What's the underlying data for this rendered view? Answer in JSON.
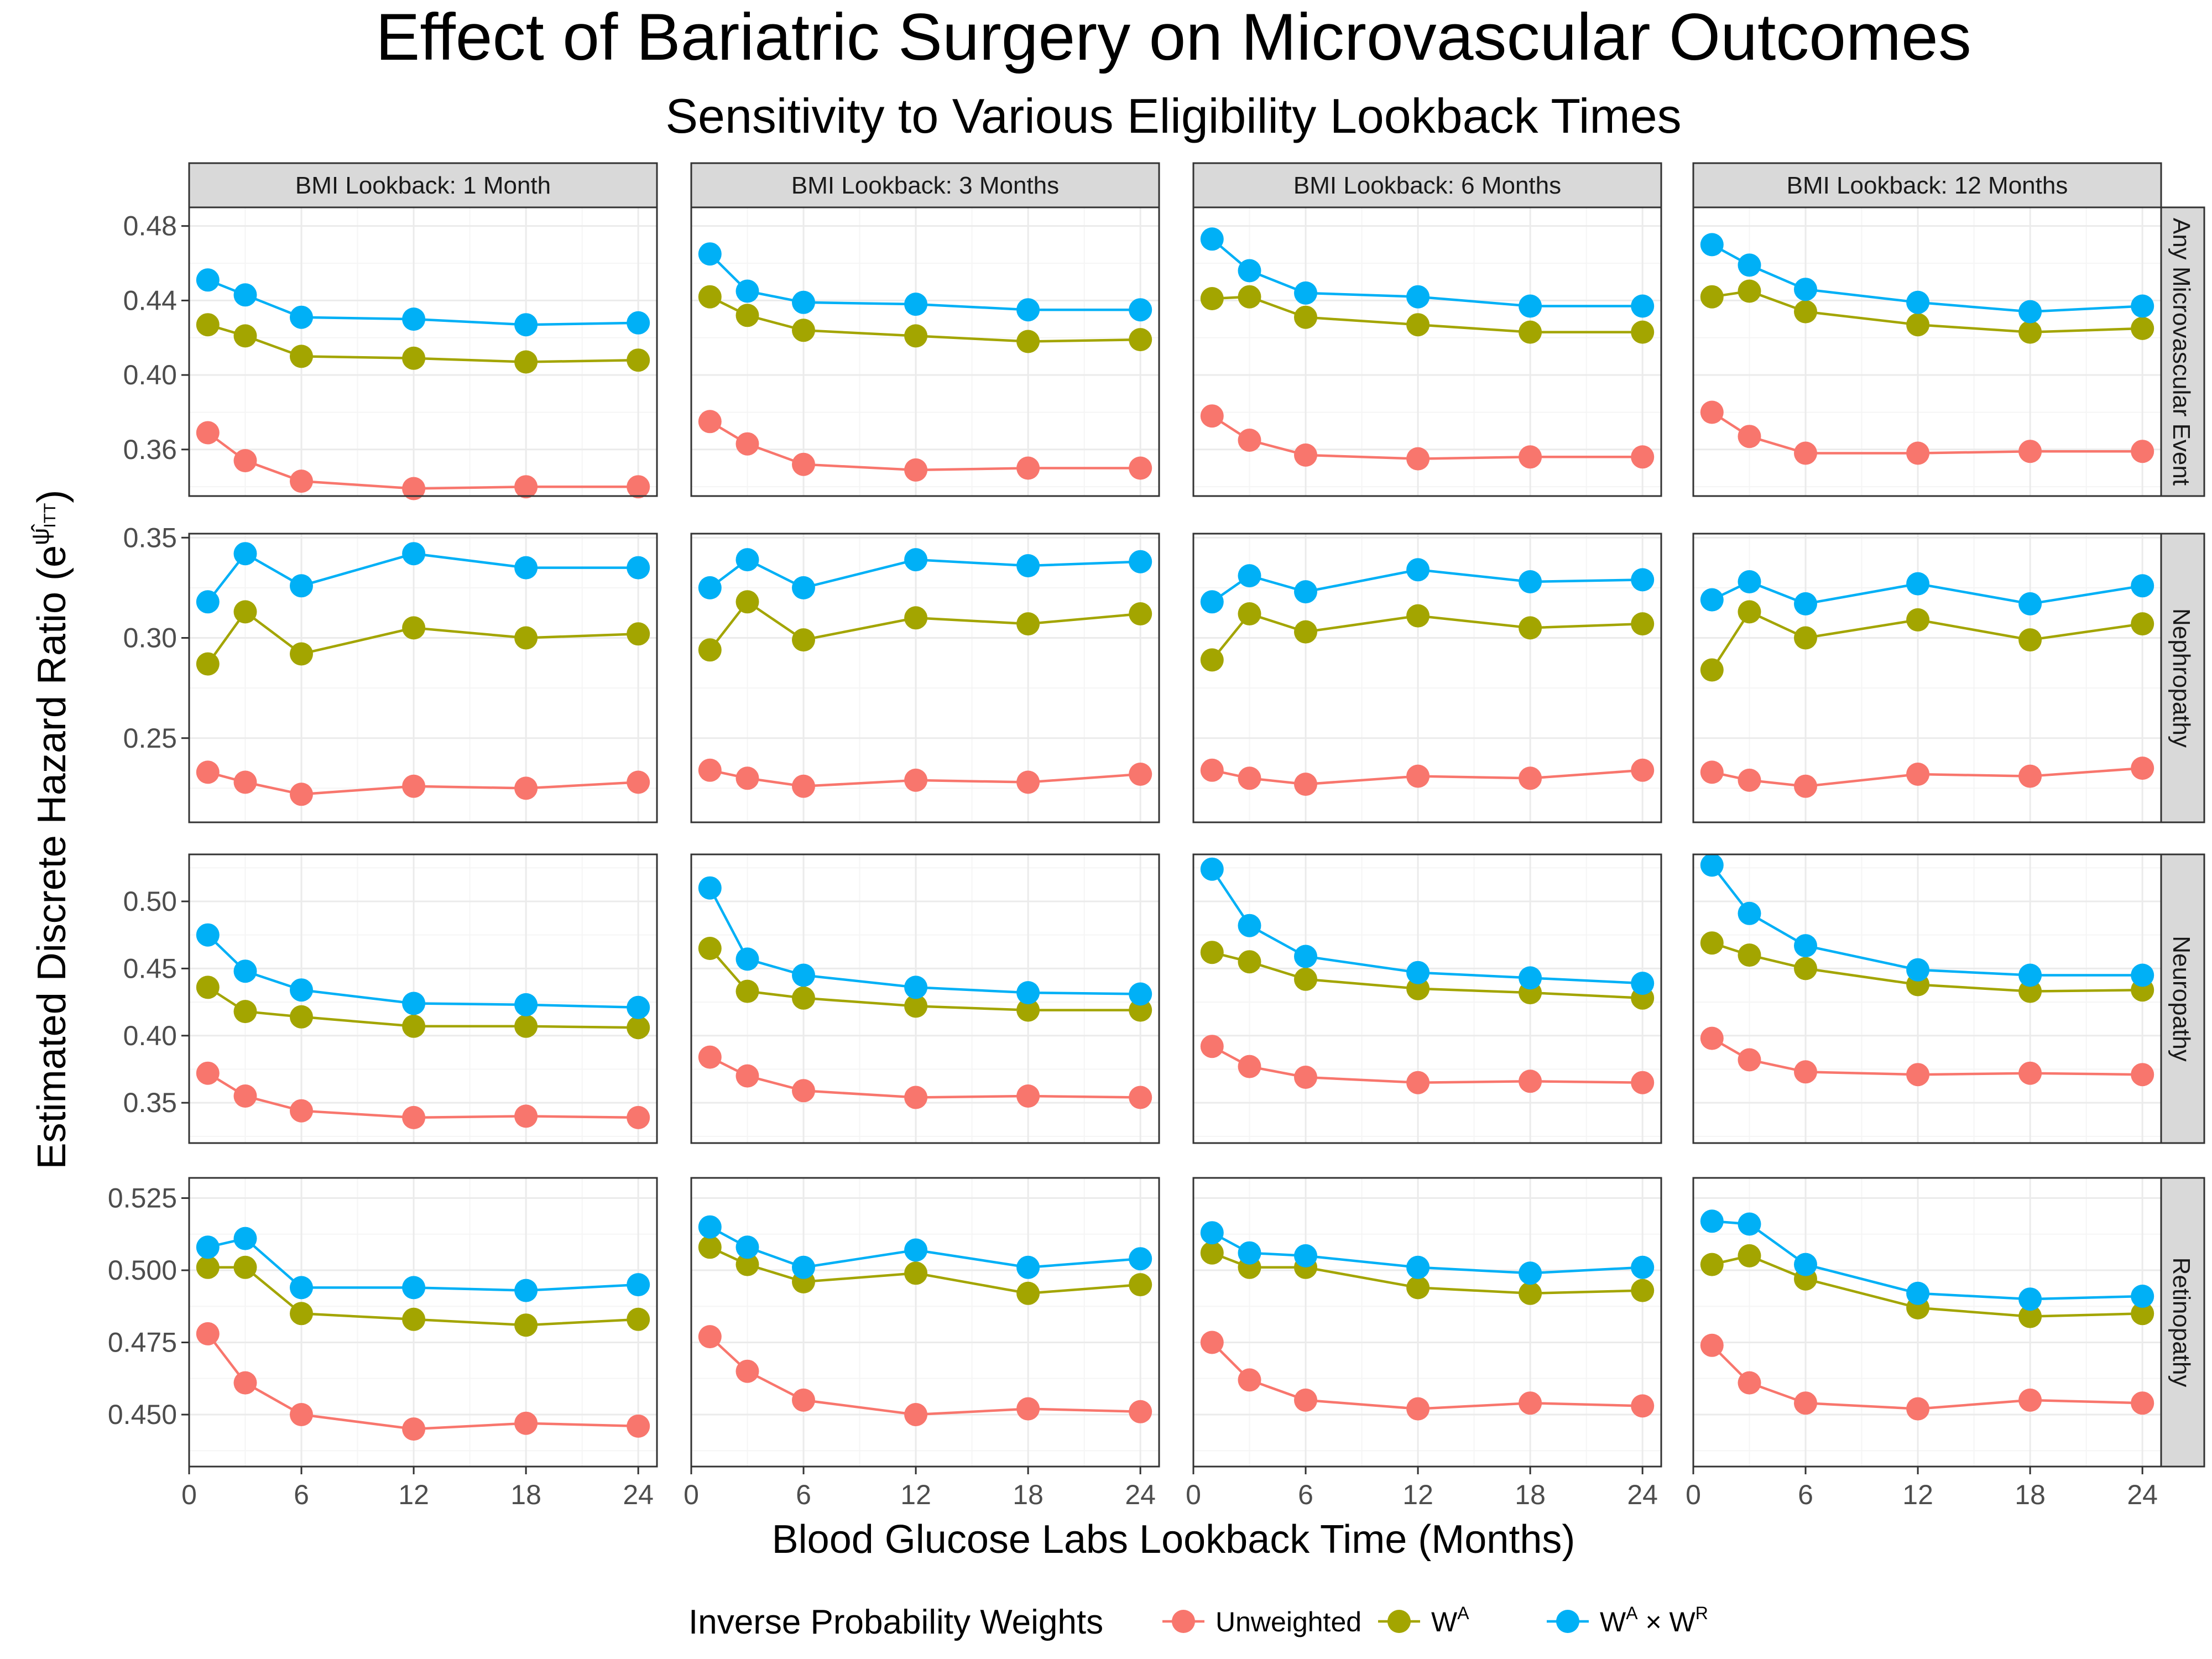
{
  "chart_data": {
    "type": "line",
    "title": "Effect of Bariatric Surgery on Microvascular Outcomes",
    "subtitle": "Sensitivity to Various Eligibility Lookback Times",
    "xlabel": "Blood Glucose Labs Lookback Time (Months)",
    "ylabel_text": "Estimated Discrete Hazard Ratio (e",
    "ylabel_sup": "ψ̂",
    "ylabel_sub": "ITT",
    "ylabel_close": ")",
    "x": [
      1,
      3,
      6,
      12,
      18,
      24
    ],
    "xlim": [
      0,
      25
    ],
    "xticks": [
      0,
      6,
      12,
      18,
      24
    ],
    "grid": true,
    "legend": {
      "title": "Inverse Probability Weights",
      "position": "bottom",
      "entries": [
        {
          "key": "unweighted",
          "label": "Unweighted"
        },
        {
          "key": "wa",
          "base": "W",
          "sup": "A"
        },
        {
          "key": "wawr",
          "base": "W",
          "sup": "A",
          "op": " × ",
          "base2": "W",
          "sup2": "R"
        }
      ]
    },
    "colors": {
      "unweighted": "#F8766D",
      "wa": "#A3A500",
      "wawr": "#00B0F6"
    },
    "columns": [
      "BMI Lookback: 1 Month",
      "BMI Lookback: 3 Months",
      "BMI Lookback: 6 Months",
      "BMI Lookback: 12 Months"
    ],
    "rows": [
      {
        "label": "Any Microvascular Event",
        "ylim": [
          0.335,
          0.49
        ],
        "yticks": [
          0.36,
          0.4,
          0.44,
          0.48
        ],
        "ytick_labels": [
          "0.36",
          "0.40",
          "0.44",
          "0.48"
        ],
        "panels": [
          {
            "unweighted": [
              0.369,
              0.354,
              0.343,
              0.339,
              0.34,
              0.34
            ],
            "wa": [
              0.427,
              0.421,
              0.41,
              0.409,
              0.407,
              0.408
            ],
            "wawr": [
              0.451,
              0.443,
              0.431,
              0.43,
              0.427,
              0.428
            ]
          },
          {
            "unweighted": [
              0.375,
              0.363,
              0.352,
              0.349,
              0.35,
              0.35
            ],
            "wa": [
              0.442,
              0.432,
              0.424,
              0.421,
              0.418,
              0.419
            ],
            "wawr": [
              0.465,
              0.445,
              0.439,
              0.438,
              0.435,
              0.435
            ]
          },
          {
            "unweighted": [
              0.378,
              0.365,
              0.357,
              0.355,
              0.356,
              0.356
            ],
            "wa": [
              0.441,
              0.442,
              0.431,
              0.427,
              0.423,
              0.423
            ],
            "wawr": [
              0.473,
              0.456,
              0.444,
              0.442,
              0.437,
              0.437
            ]
          },
          {
            "unweighted": [
              0.38,
              0.367,
              0.358,
              0.358,
              0.359,
              0.359
            ],
            "wa": [
              0.442,
              0.445,
              0.434,
              0.427,
              0.423,
              0.425
            ],
            "wawr": [
              0.47,
              0.459,
              0.446,
              0.439,
              0.434,
              0.437
            ]
          }
        ]
      },
      {
        "label": "Nephropathy",
        "ylim": [
          0.208,
          0.352
        ],
        "yticks": [
          0.25,
          0.3,
          0.35
        ],
        "ytick_labels": [
          "0.25",
          "0.30",
          "0.35"
        ],
        "panels": [
          {
            "unweighted": [
              0.233,
              0.228,
              0.222,
              0.226,
              0.225,
              0.228
            ],
            "wa": [
              0.287,
              0.313,
              0.292,
              0.305,
              0.3,
              0.302
            ],
            "wawr": [
              0.318,
              0.342,
              0.326,
              0.342,
              0.335,
              0.335
            ]
          },
          {
            "unweighted": [
              0.234,
              0.23,
              0.226,
              0.229,
              0.228,
              0.232
            ],
            "wa": [
              0.294,
              0.318,
              0.299,
              0.31,
              0.307,
              0.312
            ],
            "wawr": [
              0.325,
              0.339,
              0.325,
              0.339,
              0.336,
              0.338
            ]
          },
          {
            "unweighted": [
              0.234,
              0.23,
              0.227,
              0.231,
              0.23,
              0.234
            ],
            "wa": [
              0.289,
              0.312,
              0.303,
              0.311,
              0.305,
              0.307
            ],
            "wawr": [
              0.318,
              0.331,
              0.323,
              0.334,
              0.328,
              0.329
            ]
          },
          {
            "unweighted": [
              0.233,
              0.229,
              0.226,
              0.232,
              0.231,
              0.235
            ],
            "wa": [
              0.284,
              0.313,
              0.3,
              0.309,
              0.299,
              0.307
            ],
            "wawr": [
              0.319,
              0.328,
              0.317,
              0.327,
              0.317,
              0.326
            ]
          }
        ]
      },
      {
        "label": "Neuropathy",
        "ylim": [
          0.32,
          0.535
        ],
        "yticks": [
          0.35,
          0.4,
          0.45,
          0.5
        ],
        "ytick_labels": [
          "0.35",
          "0.40",
          "0.45",
          "0.50"
        ],
        "panels": [
          {
            "unweighted": [
              0.372,
              0.355,
              0.344,
              0.339,
              0.34,
              0.339
            ],
            "wa": [
              0.436,
              0.418,
              0.414,
              0.407,
              0.407,
              0.406
            ],
            "wawr": [
              0.475,
              0.448,
              0.434,
              0.424,
              0.423,
              0.421
            ]
          },
          {
            "unweighted": [
              0.384,
              0.37,
              0.359,
              0.354,
              0.355,
              0.354
            ],
            "wa": [
              0.465,
              0.433,
              0.428,
              0.422,
              0.419,
              0.419
            ],
            "wawr": [
              0.51,
              0.457,
              0.445,
              0.436,
              0.432,
              0.431
            ]
          },
          {
            "unweighted": [
              0.392,
              0.377,
              0.369,
              0.365,
              0.366,
              0.365
            ],
            "wa": [
              0.462,
              0.455,
              0.442,
              0.435,
              0.432,
              0.428
            ],
            "wawr": [
              0.524,
              0.482,
              0.459,
              0.447,
              0.443,
              0.439
            ]
          },
          {
            "unweighted": [
              0.398,
              0.382,
              0.373,
              0.371,
              0.372,
              0.371
            ],
            "wa": [
              0.469,
              0.46,
              0.45,
              0.438,
              0.433,
              0.434
            ],
            "wawr": [
              0.527,
              0.491,
              0.467,
              0.449,
              0.445,
              0.445
            ]
          }
        ]
      },
      {
        "label": "Retinopathy",
        "ylim": [
          0.432,
          0.532
        ],
        "yticks": [
          0.45,
          0.475,
          0.5,
          0.525
        ],
        "ytick_labels": [
          "0.450",
          "0.475",
          "0.500",
          "0.525"
        ],
        "panels": [
          {
            "unweighted": [
              0.478,
              0.461,
              0.45,
              0.445,
              0.447,
              0.446
            ],
            "wa": [
              0.501,
              0.501,
              0.485,
              0.483,
              0.481,
              0.483
            ],
            "wawr": [
              0.508,
              0.511,
              0.494,
              0.494,
              0.493,
              0.495
            ]
          },
          {
            "unweighted": [
              0.477,
              0.465,
              0.455,
              0.45,
              0.452,
              0.451
            ],
            "wa": [
              0.508,
              0.502,
              0.496,
              0.499,
              0.492,
              0.495
            ],
            "wawr": [
              0.515,
              0.508,
              0.501,
              0.507,
              0.501,
              0.504
            ]
          },
          {
            "unweighted": [
              0.475,
              0.462,
              0.455,
              0.452,
              0.454,
              0.453
            ],
            "wa": [
              0.506,
              0.501,
              0.501,
              0.494,
              0.492,
              0.493
            ],
            "wawr": [
              0.513,
              0.506,
              0.505,
              0.501,
              0.499,
              0.501
            ]
          },
          {
            "unweighted": [
              0.474,
              0.461,
              0.454,
              0.452,
              0.455,
              0.454
            ],
            "wa": [
              0.502,
              0.505,
              0.497,
              0.487,
              0.484,
              0.485
            ],
            "wawr": [
              0.517,
              0.516,
              0.502,
              0.492,
              0.49,
              0.491
            ]
          }
        ]
      }
    ]
  }
}
